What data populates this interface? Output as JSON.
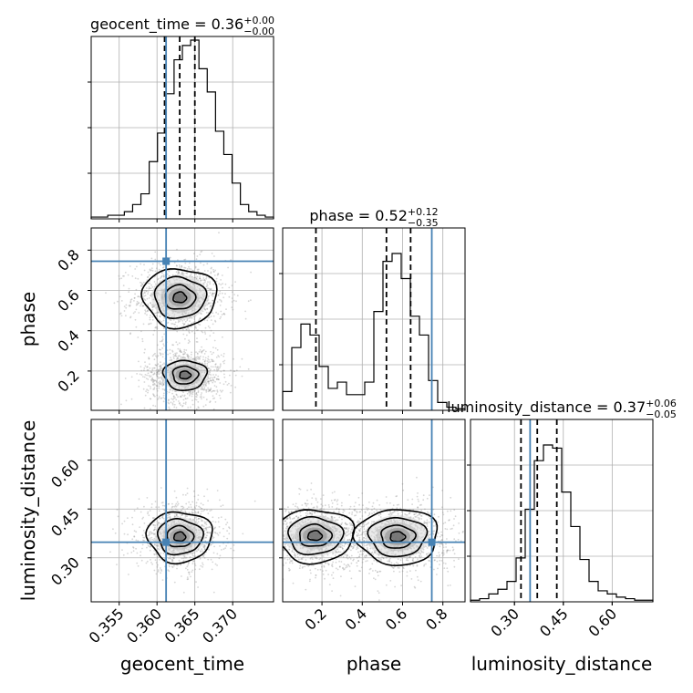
{
  "truth_color": "#4682b4",
  "chart_data": {
    "type": "corner",
    "parameters": [
      "geocent_time",
      "phase",
      "luminosity_distance"
    ],
    "truths": {
      "geocent_time": 0.3612,
      "phase": 0.745,
      "luminosity_distance": 0.348
    },
    "ranges": {
      "geocent_time": [
        0.3513,
        0.3754
      ],
      "phase": [
        0.005,
        0.91
      ],
      "luminosity_distance": [
        0.165,
        0.725
      ]
    },
    "ticks": {
      "geocent_time": [
        0.355,
        0.36,
        0.365,
        0.37
      ],
      "phase": [
        0.2,
        0.4,
        0.6,
        0.8
      ],
      "luminosity_distance": [
        0.3,
        0.45,
        0.6
      ]
    },
    "tick_labels": {
      "geocent_time": [
        "0.355",
        "0.360",
        "0.365",
        "0.370"
      ],
      "phase": [
        "0.2",
        "0.4",
        "0.6",
        "0.8"
      ],
      "luminosity_distance": [
        "0.30",
        "0.45",
        "0.60"
      ]
    },
    "titles": {
      "geocent_time": {
        "label": "geocent_time = 0.36",
        "plus": "+0.00",
        "minus": "−0.00"
      },
      "phase": {
        "label": "phase = 0.52",
        "plus": "+0.12",
        "minus": "−0.35"
      },
      "luminosity_distance": {
        "label": "luminosity_distance = 0.37",
        "plus": "+0.06",
        "minus": "−0.05"
      }
    },
    "quantiles": {
      "geocent_time": [
        0.361,
        0.363,
        0.365
      ],
      "phase": [
        0.17,
        0.52,
        0.64
      ],
      "luminosity_distance": [
        0.32,
        0.37,
        0.43
      ]
    },
    "hist_max": {
      "geocent_time": 0.98,
      "phase": 0.86,
      "luminosity_distance": 0.86
    },
    "histograms": {
      "geocent_time": [
        0.01,
        0.01,
        0.02,
        0.02,
        0.04,
        0.08,
        0.14,
        0.32,
        0.48,
        0.7,
        0.89,
        0.97,
        1.0,
        0.84,
        0.71,
        0.49,
        0.36,
        0.2,
        0.08,
        0.04,
        0.02,
        0.01
      ],
      "phase": [
        0.12,
        0.4,
        0.55,
        0.48,
        0.28,
        0.14,
        0.18,
        0.1,
        0.1,
        0.18,
        0.63,
        0.95,
        1.0,
        0.84,
        0.6,
        0.48,
        0.19,
        0.05,
        0.02,
        0.01
      ],
      "luminosity_distance": [
        0.01,
        0.02,
        0.05,
        0.08,
        0.13,
        0.28,
        0.59,
        0.9,
        1.0,
        0.98,
        0.7,
        0.48,
        0.27,
        0.13,
        0.07,
        0.05,
        0.03,
        0.02,
        0.01,
        0.01
      ]
    },
    "contours_2d": {
      "phase_vs_geocent_time": {
        "modes": [
          {
            "center": [
              0.363,
              0.565
            ],
            "spread": [
              0.0025,
              0.075
            ],
            "level_scales": [
              0.35,
              0.8,
              1.35,
              1.95
            ]
          },
          {
            "center": [
              0.3637,
              0.18
            ],
            "spread": [
              0.0021,
              0.055
            ],
            "level_scales": [
              0.35,
              0.8,
              1.35
            ]
          }
        ]
      },
      "luminosity_distance_vs_geocent_time": {
        "modes": [
          {
            "center": [
              0.363,
              0.365
            ],
            "spread": [
              0.0022,
              0.04
            ],
            "level_scales": [
              0.35,
              0.8,
              1.35,
              1.95
            ]
          }
        ]
      },
      "luminosity_distance_vs_phase": {
        "modes": [
          {
            "center": [
              0.165,
              0.368
            ],
            "spread": [
              0.1,
              0.042
            ],
            "level_scales": [
              0.35,
              0.8,
              1.35,
              1.95
            ]
          },
          {
            "center": [
              0.575,
              0.365
            ],
            "spread": [
              0.105,
              0.044
            ],
            "level_scales": [
              0.35,
              0.8,
              1.35,
              1.95
            ]
          }
        ]
      }
    },
    "xlabels": [
      "geocent_time",
      "phase",
      "luminosity_distance"
    ],
    "ylabels": [
      "phase",
      "luminosity_distance"
    ],
    "grid": true
  }
}
